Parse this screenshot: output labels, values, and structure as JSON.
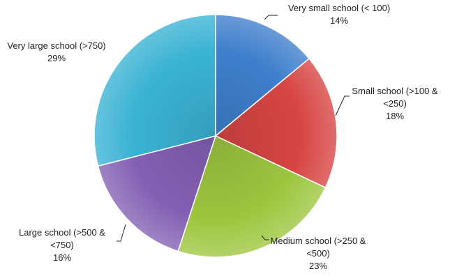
{
  "chart_data": {
    "type": "pie",
    "title": "",
    "slices": [
      {
        "name": "Very small school (< 100)",
        "label_lines": [
          "Very small school (< 100)"
        ],
        "value": 14,
        "value_label": "14%",
        "color": "#3F7FCC"
      },
      {
        "name": "Small school (>100 & <250)",
        "label_lines": [
          "Small school (>100 &",
          "<250)"
        ],
        "value": 18,
        "value_label": "18%",
        "color": "#D64543"
      },
      {
        "name": "Medium school (>250 & <500)",
        "label_lines": [
          "Medium school (>250 &",
          "<500)"
        ],
        "value": 23,
        "value_label": "23%",
        "color": "#9DC63F"
      },
      {
        "name": "Large school (>500 & <750)",
        "label_lines": [
          "Large school (>500 &",
          "<750)"
        ],
        "value": 16,
        "value_label": "16%",
        "color": "#8460B3"
      },
      {
        "name": "Very large school (>750)",
        "label_lines": [
          "Very large school (>750)"
        ],
        "value": 29,
        "value_label": "29%",
        "color": "#3BB3D4"
      }
    ],
    "start_angle": "12 o'clock",
    "direction": "clockwise",
    "legend": "none",
    "labels": "outside with leader lines"
  }
}
